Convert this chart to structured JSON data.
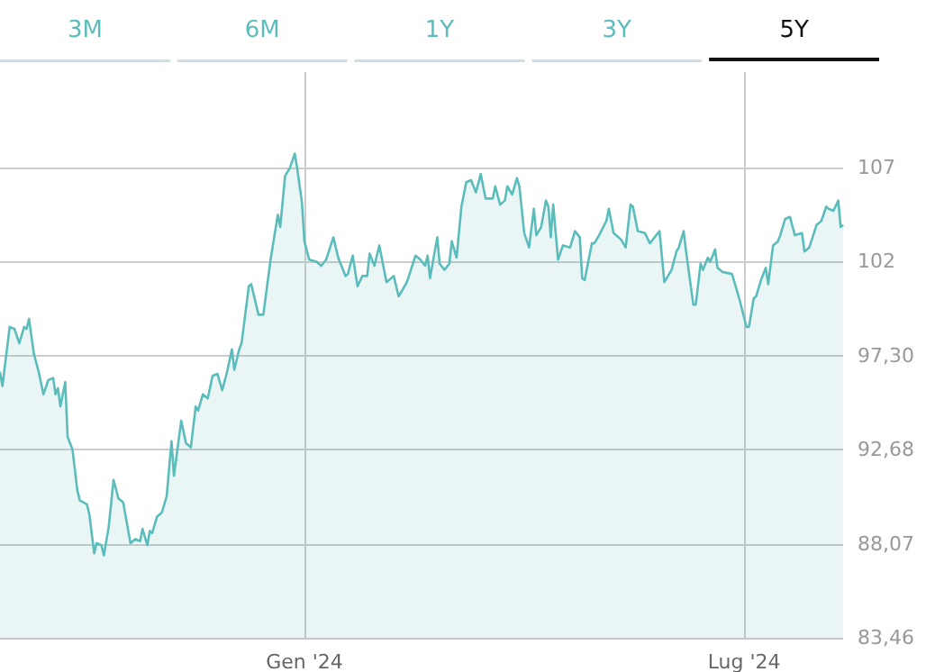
{
  "chart_data": {
    "type": "area",
    "annotations": [
      "3M",
      "6M",
      "1Y",
      "3Y",
      "5Y"
    ],
    "x": [
      "2023-08-28",
      "2023-08-29",
      "2023-09-01",
      "2023-09-03",
      "2023-09-05",
      "2023-09-07",
      "2023-09-08",
      "2023-09-09",
      "2023-09-11",
      "2023-09-13",
      "2023-09-15",
      "2023-09-17",
      "2023-09-19",
      "2023-09-20",
      "2023-09-21",
      "2023-09-22",
      "2023-09-24",
      "2023-09-25",
      "2023-09-27",
      "2023-09-29",
      "2023-09-30",
      "2023-10-03",
      "2023-10-04",
      "2023-10-06",
      "2023-10-07",
      "2023-10-09",
      "2023-10-10",
      "2023-10-12",
      "2023-10-14",
      "2023-10-16",
      "2023-10-18",
      "2023-10-21",
      "2023-10-23",
      "2023-10-25",
      "2023-10-26",
      "2023-10-28",
      "2023-10-29",
      "2023-10-30",
      "2023-11-01",
      "2023-11-03",
      "2023-11-05",
      "2023-11-07",
      "2023-11-08",
      "2023-11-11",
      "2023-11-13",
      "2023-11-15",
      "2023-11-17",
      "2023-11-18",
      "2023-11-20",
      "2023-11-22",
      "2023-11-24",
      "2023-11-26",
      "2023-11-28",
      "2023-11-30",
      "2023-12-02",
      "2023-12-03",
      "2023-12-05",
      "2023-12-06",
      "2023-12-09",
      "2023-12-10",
      "2023-12-13",
      "2023-12-15",
      "2023-12-18",
      "2023-12-21",
      "2023-12-22",
      "2023-12-24",
      "2023-12-26",
      "2023-12-28",
      "2023-12-29",
      "2023-12-31",
      "2024-01-01",
      "2024-01-03",
      "2024-01-06",
      "2024-01-08",
      "2024-01-10",
      "2024-01-13",
      "2024-01-15",
      "2024-01-18",
      "2024-01-19",
      "2024-01-21",
      "2024-01-23",
      "2024-01-25",
      "2024-01-27",
      "2024-01-28",
      "2024-01-30",
      "2024-02-01",
      "2024-02-02",
      "2024-02-04",
      "2024-02-07",
      "2024-02-09",
      "2024-02-12",
      "2024-02-13",
      "2024-02-16",
      "2024-02-18",
      "2024-02-20",
      "2024-02-21",
      "2024-02-22",
      "2024-02-25",
      "2024-02-26",
      "2024-02-28",
      "2024-03-01",
      "2024-03-02",
      "2024-03-04",
      "2024-03-06",
      "2024-03-08",
      "2024-03-10",
      "2024-03-12",
      "2024-03-14",
      "2024-03-16",
      "2024-03-19",
      "2024-03-20",
      "2024-03-22",
      "2024-03-24",
      "2024-03-25",
      "2024-03-27",
      "2024-03-29",
      "2024-03-30",
      "2024-04-01",
      "2024-04-03",
      "2024-04-05",
      "2024-04-06",
      "2024-04-08",
      "2024-04-10",
      "2024-04-11",
      "2024-04-12",
      "2024-04-13",
      "2024-04-15",
      "2024-04-17",
      "2024-04-20",
      "2024-04-22",
      "2024-04-24",
      "2024-04-25",
      "2024-04-26",
      "2024-04-29",
      "2024-04-30",
      "2024-05-02",
      "2024-05-05",
      "2024-05-06",
      "2024-05-08",
      "2024-05-11",
      "2024-05-13",
      "2024-05-15",
      "2024-05-16",
      "2024-05-18",
      "2024-05-21",
      "2024-05-23",
      "2024-05-27",
      "2024-05-29",
      "2024-05-31",
      "2024-06-01",
      "2024-06-03",
      "2024-06-04",
      "2024-06-06",
      "2024-06-07",
      "2024-06-10",
      "2024-06-11",
      "2024-06-13",
      "2024-06-14",
      "2024-06-16",
      "2024-06-17",
      "2024-06-19",
      "2024-06-20",
      "2024-06-22",
      "2024-06-26",
      "2024-06-29",
      "2024-07-02",
      "2024-07-03",
      "2024-07-05",
      "2024-07-06",
      "2024-07-08",
      "2024-07-10",
      "2024-07-11",
      "2024-07-13",
      "2024-07-15",
      "2024-07-16",
      "2024-07-18",
      "2024-07-20",
      "2024-07-22",
      "2024-07-25",
      "2024-07-26",
      "2024-07-28",
      "2024-07-31",
      "2024-08-02",
      "2024-08-04",
      "2024-08-05",
      "2024-08-07",
      "2024-08-09",
      "2024-08-10",
      "2024-08-11"
    ],
    "series": [
      {
        "color": "#5bbdbb",
        "values": [
          96.5,
          95.8,
          98.7,
          98.6,
          97.9,
          98.7,
          98.6,
          99.1,
          97.4,
          96.5,
          95.4,
          96.1,
          96.2,
          95.4,
          95.7,
          94.8,
          96.0,
          93.3,
          92.7,
          90.7,
          90.2,
          90.0,
          89.5,
          87.6,
          88.1,
          88.0,
          87.5,
          88.9,
          91.2,
          90.3,
          90.1,
          88.1,
          88.3,
          88.2,
          88.8,
          88.0,
          88.7,
          88.6,
          89.4,
          89.6,
          90.4,
          93.1,
          91.4,
          94.1,
          93.0,
          92.8,
          94.8,
          94.6,
          95.4,
          95.2,
          96.3,
          96.4,
          95.6,
          96.5,
          97.6,
          96.6,
          97.6,
          97.9,
          100.7,
          100.8,
          99.3,
          99.3,
          102.0,
          104.2,
          103.6,
          106.1,
          106.5,
          107.2,
          106.5,
          104.8,
          102.9,
          102.0,
          101.9,
          101.7,
          102.0,
          103.1,
          102.1,
          101.2,
          101.3,
          102.2,
          100.7,
          101.2,
          101.2,
          102.3,
          101.7,
          102.7,
          102.1,
          100.9,
          101.2,
          100.2,
          100.8,
          101.1,
          102.2,
          102.0,
          101.7,
          102.2,
          101.1,
          103.1,
          101.8,
          101.5,
          101.8,
          102.9,
          102.1,
          104.6,
          105.8,
          105.9,
          105.3,
          106.2,
          105.0,
          105.0,
          105.6,
          104.7,
          104.9,
          105.6,
          105.2,
          106.0,
          105.6,
          103.3,
          102.6,
          104.5,
          103.2,
          103.6,
          104.9,
          104.6,
          103.1,
          104.7,
          102.0,
          102.7,
          102.6,
          103.4,
          103.1,
          101.1,
          101.0,
          102.8,
          102.8,
          103.2,
          103.9,
          104.5,
          103.3,
          103.0,
          102.6,
          104.7,
          104.6,
          103.4,
          103.3,
          102.8,
          103.4,
          100.9,
          101.3,
          101.5,
          102.4,
          102.6,
          103.4,
          102.4,
          99.8,
          99.8,
          101.8,
          101.5,
          102.1,
          101.9,
          102.5,
          101.6,
          101.4,
          101.3,
          100.1,
          98.7,
          98.7,
          100.1,
          100.2,
          101.0,
          101.6,
          100.8,
          102.7,
          102.9,
          103.2,
          104.0,
          104.1,
          103.2,
          103.3,
          102.4,
          102.6,
          103.7,
          103.9,
          104.6,
          104.5,
          104.4,
          104.9,
          103.6,
          103.7
        ]
      }
    ],
    "xlim": [
      "2023-08-28",
      "2024-08-11"
    ],
    "xticks": [
      {
        "value": "2024-01-01",
        "label": "Gen '24"
      },
      {
        "value": "2024-07-01",
        "label": "Lug '24"
      }
    ],
    "ylim": [
      83.46,
      111.2
    ],
    "yticks": [
      {
        "value": 83.46,
        "label": "83,46"
      },
      {
        "value": 88.07,
        "label": "88,07"
      },
      {
        "value": 92.68,
        "label": "92,68"
      },
      {
        "value": 97.3,
        "label": "97,30"
      },
      {
        "value": 101.91,
        "label": "102"
      },
      {
        "value": 106.52,
        "label": "107"
      }
    ],
    "grid": true
  }
}
